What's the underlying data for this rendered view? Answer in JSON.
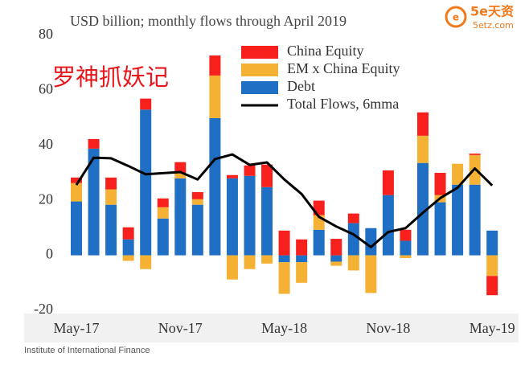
{
  "chart_data": {
    "type": "bar",
    "title": "USD billion; monthly flows through April 2019",
    "categories": [
      "May-17",
      null,
      null,
      null,
      null,
      null,
      "Nov-17",
      null,
      null,
      null,
      null,
      null,
      "May-18",
      null,
      null,
      null,
      null,
      null,
      "Nov-18",
      null,
      null,
      null,
      null,
      null,
      "May-19"
    ],
    "series": [
      {
        "name": "China Equity",
        "color": "#f7201c",
        "values": [
          2,
          3.5,
          4.3,
          4.4,
          4,
          3.2,
          3.9,
          2.6,
          7.3,
          1.2,
          3.8,
          8.2,
          9,
          5.8,
          5.3,
          6,
          3.5,
          0,
          9,
          4,
          8.5,
          8.1,
          0,
          0.5,
          -7
        ]
      },
      {
        "name": "EM x China Equity",
        "color": "#f4b134",
        "values": [
          6.7,
          0,
          5.6,
          -2,
          -5,
          4.1,
          2,
          2,
          15.5,
          -8.8,
          -5,
          -3,
          -11.5,
          -7.5,
          5.3,
          -1.5,
          -5.5,
          -13.7,
          0,
          -1,
          9.9,
          2.6,
          7.6,
          10.8,
          -7.5
        ]
      },
      {
        "name": "Debt",
        "color": "#1f6fc4",
        "values": [
          19.6,
          38.8,
          18.4,
          5.8,
          53,
          13.4,
          28,
          18.4,
          49.9,
          28,
          28.9,
          24.8,
          -2.5,
          -2.5,
          9.3,
          -2.3,
          11.7,
          9.9,
          21.9,
          5.3,
          33.6,
          19.3,
          25.7,
          25.7,
          9
        ]
      },
      {
        "name": "Total Flows, 6mma",
        "type": "line",
        "color": "#000000",
        "values": [
          25.6,
          35.5,
          35.3,
          32.5,
          29.5,
          29.9,
          30.3,
          27.6,
          35,
          36.7,
          32.9,
          33.8,
          27.6,
          22.3,
          14,
          10.5,
          7.6,
          3,
          8.5,
          9.9,
          15.5,
          20.8,
          24.6,
          31.6,
          25.4
        ]
      }
    ],
    "ylim": [
      -20,
      80
    ],
    "yticks": [
      -20,
      0,
      20,
      40,
      60,
      80
    ],
    "grid": false,
    "source": "Institute of International Finance"
  },
  "watermark": "罗神抓妖记",
  "logo": {
    "name": "5e天资",
    "url": "5etz.com"
  }
}
